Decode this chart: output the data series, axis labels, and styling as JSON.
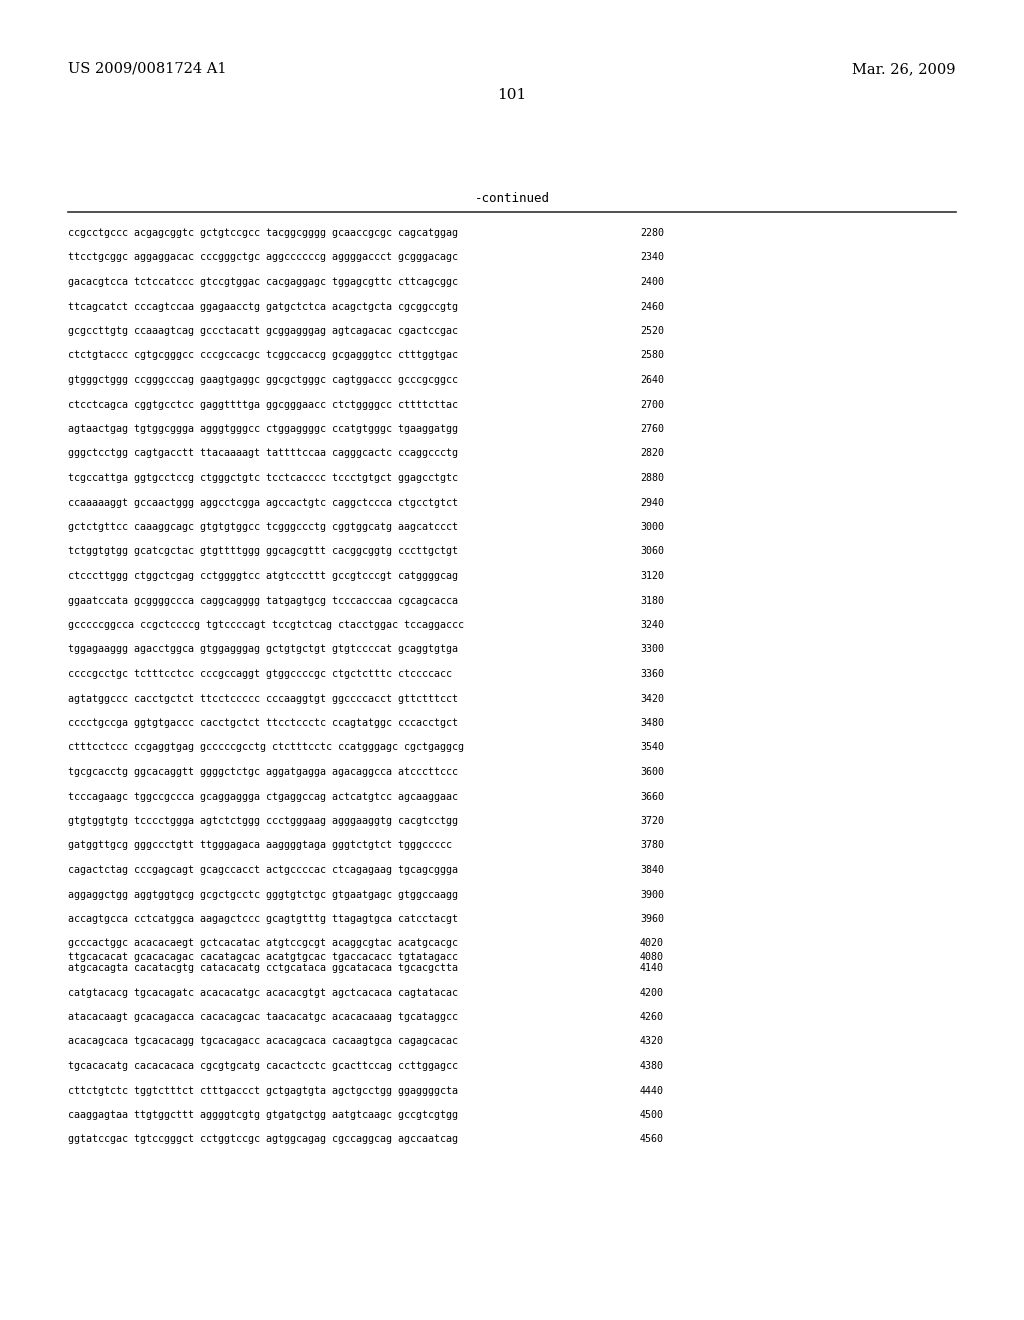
{
  "header_left": "US 2009/0081724 A1",
  "header_right": "Mar. 26, 2009",
  "page_number": "101",
  "continued_label": "-continued",
  "background_color": "#ffffff",
  "text_color": "#000000",
  "sequences": [
    [
      "ccgcctgccc acgagcggtc gctgtccgcc tacggcgggg gcaaccgcgc cagcatggag",
      "2280"
    ],
    [
      "ttcctgcggc aggaggacac cccgggctgc aggccccccg aggggaccct gcgggacagc",
      "2340"
    ],
    [
      "gacacgtcca tctccatccc gtccgtggac cacgaggagc tggagcgttc cttcagcggc",
      "2400"
    ],
    [
      "ttcagcatct cccagtccaa ggagaacctg gatgctctca acagctgcta cgcggccgtg",
      "2460"
    ],
    [
      "gcgccttgtg ccaaagtcag gccctacatt gcggagggag agtcagacac cgactccgac",
      "2520"
    ],
    [
      "ctctgtaccc cgtgcgggcc cccgccacgc tcggccaccg gcgagggtcc ctttggtgac",
      "2580"
    ],
    [
      "gtgggctggg ccgggcccag gaagtgaggc ggcgctgggc cagtggaccc gcccgcggcc",
      "2640"
    ],
    [
      "ctcctcagca cggtgcctcc gaggttttga ggcgggaacc ctctggggcc cttttcttac",
      "2700"
    ],
    [
      "agtaactgag tgtggcggga agggtgggcc ctggaggggc ccatgtgggc tgaaggatgg",
      "2760"
    ],
    [
      "gggctcctgg cagtgacctt ttacaaaagt tattttccaa cagggcactc ccaggccctg",
      "2820"
    ],
    [
      "tcgccattga ggtgcctccg ctgggctgtc tcctcacccc tccctgtgct ggagcctgtc",
      "2880"
    ],
    [
      "ccaaaaaggt gccaactggg aggcctcgga agccactgtc caggctccca ctgcctgtct",
      "2940"
    ],
    [
      "gctctgttcc caaaggcagc gtgtgtggcc tcgggccctg cggtggcatg aagcatccct",
      "3000"
    ],
    [
      "tctggtgtgg gcatcgctac gtgttttggg ggcagcgttt cacggcggtg cccttgctgt",
      "3060"
    ],
    [
      "ctcccttggg ctggctcgag cctggggtcc atgtcccttt gccgtcccgt catggggcag",
      "3120"
    ],
    [
      "ggaatccata gcggggccca caggcagggg tatgagtgcg tcccacccaa cgcagcacca",
      "3180"
    ],
    [
      "gcccccggcca ccgctccccg tgtccccagt tccgtctcag ctacctggac tccaggaccc",
      "3240"
    ],
    [
      "tggagaaggg agacctggca gtggagggag gctgtgctgt gtgtccccat gcaggtgtga",
      "3300"
    ],
    [
      "ccccgcctgc tctttcctcc cccgccaggt gtggccccgc ctgctctttc ctccccacc",
      "3360"
    ],
    [
      "agtatggccc cacctgctct ttcctccccc cccaaggtgt ggccccacct gttctttcct",
      "3420"
    ],
    [
      "cccctgccga ggtgtgaccc cacctgctct ttcctccctc ccagtatggc cccacctgct",
      "3480"
    ],
    [
      "ctttcctccc ccgaggtgag gcccccgcctg ctctttcctc ccatgggagc cgctgaggcg",
      "3540"
    ],
    [
      "tgcgcacctg ggcacaggtt ggggctctgc aggatgagga agacaggcca atcccttccc",
      "3600"
    ],
    [
      "tcccagaagc tggccgccca gcaggaggga ctgaggccag actcatgtcc agcaaggaac",
      "3660"
    ],
    [
      "gtgtggtgtg tcccctggga agtctctggg ccctgggaag agggaaggtg cacgtcctgg",
      "3720"
    ],
    [
      "gatggttgcg gggccctgtt ttgggagaca aaggggtaga gggtctgtct tgggccccc",
      "3780"
    ],
    [
      "cagactctag cccgagcagt gcagccacct actgccccac ctcagagaag tgcagcggga",
      "3840"
    ],
    [
      "aggaggctgg aggtggtgcg gcgctgcctc gggtgtctgc gtgaatgagc gtggccaagg",
      "3900"
    ],
    [
      "accagtgcca cctcatggca aagagctccc gcagtgtttg ttagagtgca catcctacgt",
      "3960"
    ],
    [
      "gcccactggc acacacaegt gctcacatac atgtccgcgt acaggcgtac acatgcacgc",
      "4020"
    ],
    [
      "ttgcacacat gcacacagac cacatagcac acatgtgcac tgaccacacc tgtatagacc",
      "4080"
    ],
    [
      "atgcacagta cacatacgtg catacacatg cctgcataca ggcatacaca tgcacgctta",
      "4140"
    ],
    [
      "catgtacacg tgcacagatc acacacatgc acacacgtgt agctcacaca cagtatacac",
      "4200"
    ],
    [
      "atacacaagt gcacagacca cacacagcac taacacatgc acacacaaag tgcataggcc",
      "4260"
    ],
    [
      "acacagcaca tgcacacagg tgcacagacc acacagcaca cacaagtgca cagagcacac",
      "4320"
    ],
    [
      "tgcacacatg cacacacaca cgcgtgcatg cacactcctc gcacttccag ccttggagcc",
      "4380"
    ],
    [
      "cttctgtctc tggtctttct ctttgaccct gctgagtgta agctgcctgg ggaggggcta",
      "4440"
    ],
    [
      "caaggagtaa ttgtggcttt aggggtcgtg gtgatgctgg aatgtcaagc gccgtcgtgg",
      "4500"
    ],
    [
      "ggtatccgac tgtccgggct cctggtccgc agtggcagag cgccaggcag agccaatcag",
      "4560"
    ]
  ]
}
